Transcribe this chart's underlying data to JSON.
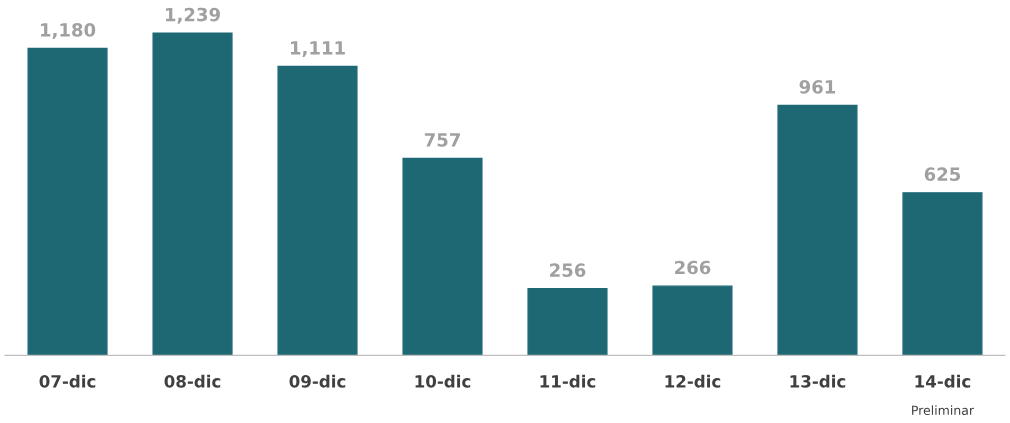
{
  "chart_data": {
    "type": "bar",
    "categories": [
      "07-dic",
      "08-dic",
      "09-dic",
      "10-dic",
      "11-dic",
      "12-dic",
      "13-dic",
      "14-dic"
    ],
    "values": [
      1180,
      1239,
      1111,
      757,
      256,
      266,
      961,
      625
    ],
    "value_labels": [
      "1,180",
      "1,239",
      "1,111",
      "757",
      "256",
      "266",
      "961",
      "625"
    ],
    "color": "#1e6874",
    "annotations": [
      "Preliminar"
    ],
    "grid": false,
    "legend": false
  }
}
